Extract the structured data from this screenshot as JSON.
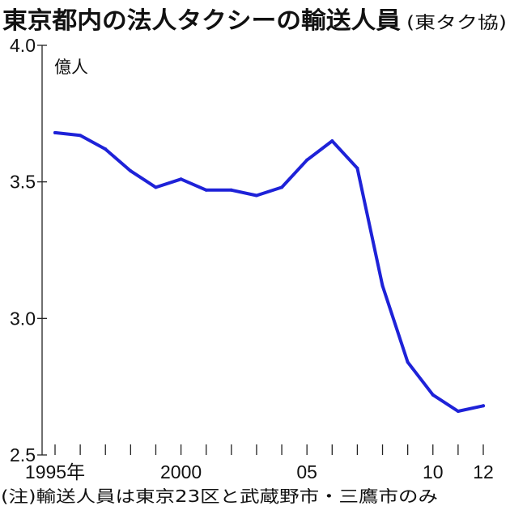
{
  "chart_data": {
    "type": "line",
    "title": "東京都内の法人タクシーの輸送人員",
    "source": "(東タク協)",
    "ylabel": "億人",
    "xlabel": "",
    "note": "(注)輸送人員は東京23区と武蔵野市・三鷹市のみ",
    "x": [
      1995,
      1996,
      1997,
      1998,
      1999,
      2000,
      2001,
      2002,
      2003,
      2004,
      2005,
      2006,
      2007,
      2008,
      2009,
      2010,
      2011,
      2012
    ],
    "series": [
      {
        "values": [
          3.68,
          3.67,
          3.62,
          3.54,
          3.48,
          3.51,
          3.47,
          3.47,
          3.45,
          3.48,
          3.58,
          3.65,
          3.55,
          3.12,
          2.84,
          2.72,
          2.66,
          2.68
        ],
        "color": "#1e22d8"
      }
    ],
    "xlim": [
      1995,
      2012
    ],
    "ylim": [
      2.5,
      4.0
    ],
    "y_ticks": [
      {
        "value": 2.5,
        "label": "2.5"
      },
      {
        "value": 3.0,
        "label": "3.0"
      },
      {
        "value": 3.5,
        "label": "3.5"
      },
      {
        "value": 4.0,
        "label": "4.0"
      }
    ],
    "x_ticks": [
      {
        "value": 1995,
        "label": "1995年"
      },
      {
        "value": 2000,
        "label": "2000"
      },
      {
        "value": 2005,
        "label": "05"
      },
      {
        "value": 2010,
        "label": "10"
      },
      {
        "value": 2012,
        "label": "12"
      }
    ],
    "grid": false,
    "legend": "none"
  }
}
